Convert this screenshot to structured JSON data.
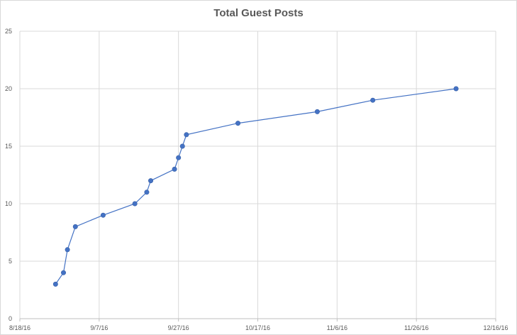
{
  "chart_data": {
    "type": "scatter",
    "title": "Total Guest Posts",
    "xlabel": "",
    "ylabel": "",
    "x_is_date": true,
    "xlim": [
      "2016-08-18",
      "2016-12-16"
    ],
    "ylim": [
      0,
      25
    ],
    "x_ticks": [
      "8/18/16",
      "9/7/16",
      "9/27/16",
      "10/17/16",
      "11/6/16",
      "11/26/16",
      "12/16/16"
    ],
    "y_ticks": [
      "0",
      "5",
      "10",
      "15",
      "20",
      "25"
    ],
    "grid": true,
    "line_color": "#4472C4",
    "marker_color": "#4472C4",
    "series": [
      {
        "points": [
          {
            "x": "2016-08-27",
            "y": 3
          },
          {
            "x": "2016-08-29",
            "y": 4
          },
          {
            "x": "2016-08-30",
            "y": 6
          },
          {
            "x": "2016-09-01",
            "y": 8
          },
          {
            "x": "2016-09-08",
            "y": 9
          },
          {
            "x": "2016-09-16",
            "y": 10
          },
          {
            "x": "2016-09-19",
            "y": 11
          },
          {
            "x": "2016-09-20",
            "y": 12
          },
          {
            "x": "2016-09-26",
            "y": 13
          },
          {
            "x": "2016-09-27",
            "y": 14
          },
          {
            "x": "2016-09-28",
            "y": 15
          },
          {
            "x": "2016-09-29",
            "y": 16
          },
          {
            "x": "2016-10-12",
            "y": 17
          },
          {
            "x": "2016-11-01",
            "y": 18
          },
          {
            "x": "2016-11-15",
            "y": 19
          },
          {
            "x": "2016-12-06",
            "y": 20
          }
        ]
      }
    ]
  }
}
